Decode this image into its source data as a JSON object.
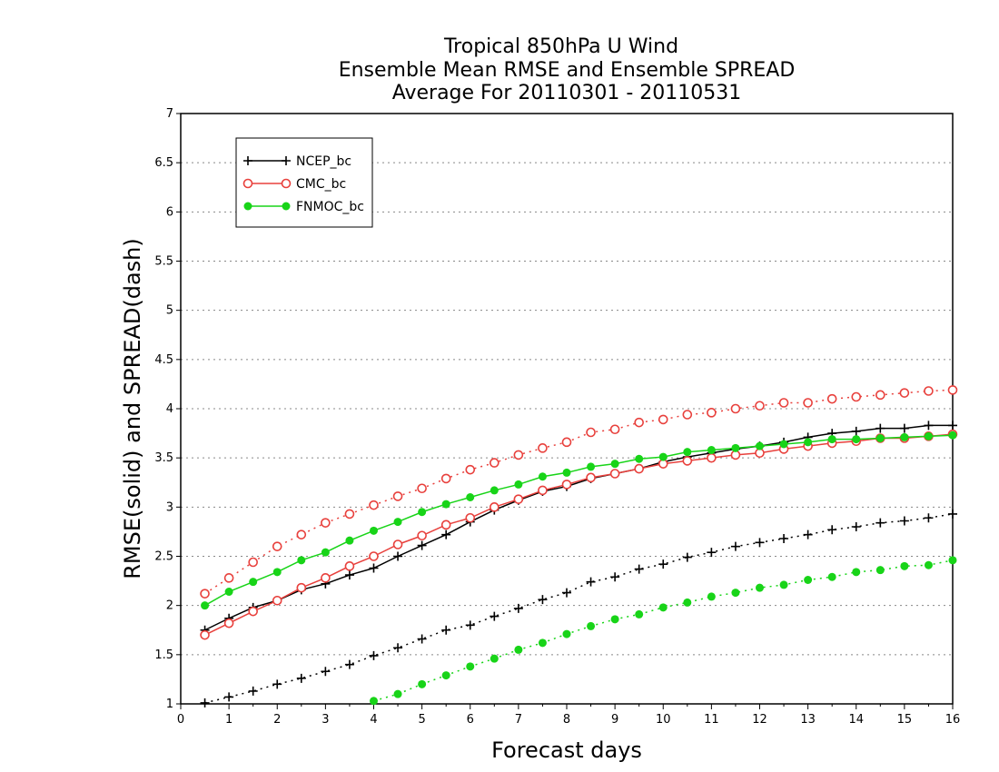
{
  "chart_data": {
    "type": "line",
    "title": [
      "Tropical 850hPa U Wind",
      "Ensemble Mean RMSE and Ensemble SPREAD",
      "Average For 20110301 - 20110531"
    ],
    "xlabel": "Forecast days",
    "ylabel": "RMSE(solid) and SPREAD(dash)",
    "xlim": [
      0,
      16
    ],
    "ylim": [
      1,
      7
    ],
    "xticks": [
      "0",
      "1",
      "2",
      "3",
      "4",
      "5",
      "6",
      "7",
      "8",
      "9",
      "10",
      "11",
      "12",
      "13",
      "14",
      "15",
      "16"
    ],
    "yticks": [
      "1",
      "1.5",
      "2",
      "2.5",
      "3",
      "3.5",
      "4",
      "4.5",
      "5",
      "5.5",
      "6",
      "6.5",
      "7"
    ],
    "grid": "horizontal dotted",
    "legend_position": "top-left",
    "x": [
      0.5,
      1,
      1.5,
      2,
      2.5,
      3,
      3.5,
      4,
      4.5,
      5,
      5.5,
      6,
      6.5,
      7,
      7.5,
      8,
      8.5,
      9,
      9.5,
      10,
      10.5,
      11,
      11.5,
      12,
      12.5,
      13,
      13.5,
      14,
      14.5,
      15,
      15.5,
      16
    ],
    "series": [
      {
        "name": "NCEP_bc",
        "color": "#000000",
        "marker": "plus",
        "rmse": [
          1.75,
          1.87,
          1.98,
          2.05,
          2.16,
          2.22,
          2.31,
          2.38,
          2.5,
          2.61,
          2.72,
          2.85,
          2.97,
          3.07,
          3.16,
          3.21,
          3.29,
          3.34,
          3.39,
          3.46,
          3.51,
          3.55,
          3.59,
          3.62,
          3.66,
          3.71,
          3.75,
          3.77,
          3.8,
          3.8,
          3.83,
          3.83
        ],
        "spread": [
          1.01,
          1.07,
          1.13,
          1.2,
          1.26,
          1.33,
          1.4,
          1.49,
          1.57,
          1.66,
          1.75,
          1.8,
          1.89,
          1.97,
          2.06,
          2.13,
          2.24,
          2.29,
          2.37,
          2.42,
          2.49,
          2.54,
          2.6,
          2.64,
          2.68,
          2.72,
          2.77,
          2.8,
          2.84,
          2.86,
          2.89,
          2.93
        ]
      },
      {
        "name": "CMC_bc",
        "color": "#e8403c",
        "marker": "open-circle",
        "rmse": [
          1.7,
          1.82,
          1.94,
          2.05,
          2.18,
          2.28,
          2.4,
          2.5,
          2.62,
          2.71,
          2.82,
          2.89,
          3.0,
          3.08,
          3.17,
          3.23,
          3.3,
          3.34,
          3.39,
          3.44,
          3.47,
          3.5,
          3.53,
          3.55,
          3.59,
          3.62,
          3.65,
          3.67,
          3.7,
          3.7,
          3.72,
          3.74
        ],
        "spread": [
          2.12,
          2.28,
          2.44,
          2.6,
          2.72,
          2.84,
          2.93,
          3.02,
          3.11,
          3.19,
          3.29,
          3.38,
          3.45,
          3.53,
          3.6,
          3.66,
          3.76,
          3.79,
          3.86,
          3.89,
          3.94,
          3.96,
          4.0,
          4.03,
          4.06,
          4.06,
          4.1,
          4.12,
          4.14,
          4.16,
          4.18,
          4.19
        ]
      },
      {
        "name": "FNMOC_bc",
        "color": "#18d418",
        "marker": "filled-circle",
        "rmse": [
          2.0,
          2.14,
          2.24,
          2.34,
          2.46,
          2.54,
          2.66,
          2.76,
          2.85,
          2.95,
          3.03,
          3.1,
          3.17,
          3.23,
          3.31,
          3.35,
          3.41,
          3.44,
          3.49,
          3.51,
          3.56,
          3.58,
          3.6,
          3.62,
          3.64,
          3.66,
          3.69,
          3.69,
          3.7,
          3.71,
          3.72,
          3.73
        ],
        "spread": [
          null,
          null,
          null,
          null,
          null,
          null,
          null,
          1.03,
          1.1,
          1.2,
          1.29,
          1.38,
          1.46,
          1.55,
          1.62,
          1.71,
          1.79,
          1.86,
          1.91,
          1.98,
          2.03,
          2.09,
          2.13,
          2.18,
          2.21,
          2.26,
          2.29,
          2.34,
          2.36,
          2.4,
          2.41,
          2.46
        ]
      }
    ]
  }
}
